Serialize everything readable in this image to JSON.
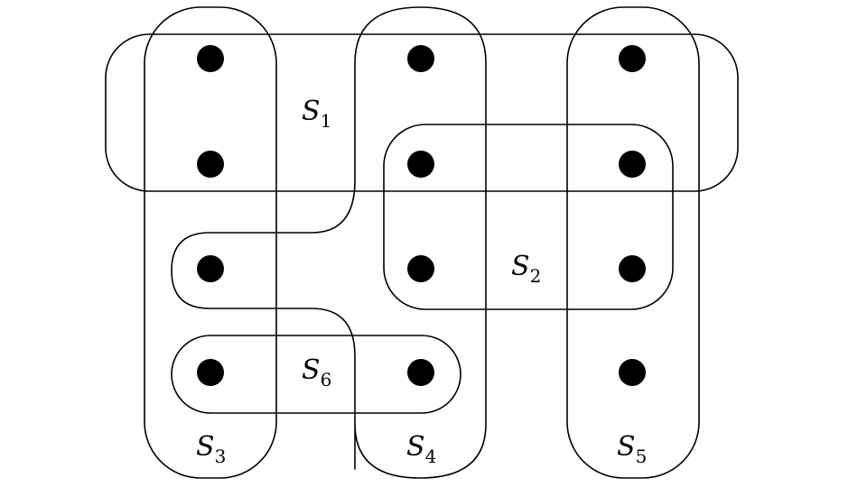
{
  "sets": [
    {
      "id": "S1",
      "letter": "S",
      "subscript": "1"
    },
    {
      "id": "S2",
      "letter": "S",
      "subscript": "2"
    },
    {
      "id": "S3",
      "letter": "S",
      "subscript": "3"
    },
    {
      "id": "S4",
      "letter": "S",
      "subscript": "4"
    },
    {
      "id": "S5",
      "letter": "S",
      "subscript": "5"
    },
    {
      "id": "S6",
      "letter": "S",
      "subscript": "6"
    }
  ],
  "element_count": 12,
  "colors": {
    "line": "#000000",
    "dot": "#000000",
    "background": "#ffffff"
  }
}
